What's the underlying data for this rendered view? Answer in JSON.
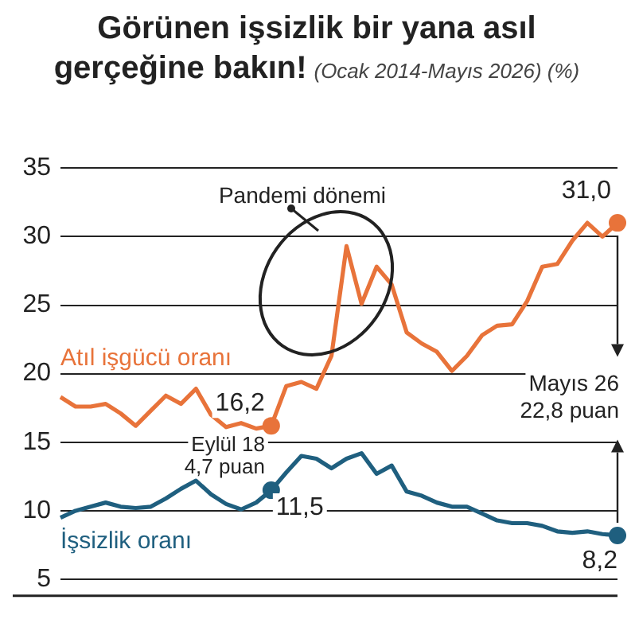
{
  "chart_data": {
    "type": "line",
    "title": "Görünen işsizlik bir yana asıl gerçeğine bakın!",
    "subtitle": "(Ocak 2014-Mayıs 2026) (%)",
    "categories": [
      null,
      null,
      null,
      null,
      null,
      null,
      null,
      null,
      null,
      null,
      null,
      null,
      null,
      null,
      null,
      null,
      null,
      null,
      null,
      null,
      null,
      null,
      null,
      null,
      null,
      null,
      null,
      null,
      null,
      null,
      null,
      null,
      null,
      null,
      null,
      null,
      null,
      null
    ],
    "ylim": [
      3.8,
      35
    ],
    "yticks": [
      5,
      10,
      15,
      20,
      25,
      30,
      35
    ],
    "grid": "y",
    "legend": false,
    "tick_labels": "y",
    "marker": "none",
    "line_style": "solid",
    "series": [
      {
        "name": "Atıl işgücü oranı",
        "color": "#e8733a",
        "values": [
          18.3,
          17.6,
          17.6,
          17.8,
          17.1,
          16.2,
          17.3,
          18.4,
          17.8,
          18.9,
          17.0,
          16.1,
          16.4,
          16.0,
          16.2,
          19.1,
          19.4,
          18.9,
          21.3,
          29.3,
          25.1,
          27.8,
          26.5,
          23.0,
          22.2,
          21.6,
          20.2,
          21.3,
          22.8,
          23.5,
          23.6,
          25.3,
          27.8,
          28.0,
          29.7,
          31.0,
          30.0,
          31.0
        ]
      },
      {
        "name": "İşsizlik oranı",
        "color": "#1f5f7f",
        "values": [
          9.5,
          10.0,
          10.3,
          10.6,
          10.3,
          10.2,
          10.3,
          10.9,
          11.6,
          12.2,
          11.2,
          10.5,
          10.1,
          10.6,
          11.5,
          12.8,
          14.0,
          13.8,
          13.1,
          13.8,
          14.2,
          12.7,
          13.3,
          11.4,
          11.1,
          10.6,
          10.3,
          10.3,
          9.8,
          9.3,
          9.1,
          9.1,
          8.9,
          8.5,
          8.4,
          8.5,
          8.3,
          8.2
        ]
      }
    ],
    "annotations": [
      "Pandemi dönemi",
      "Eylül 18\n4,7 puan",
      "Mayıs 26\n22,8 puan",
      {
        "text": "16,2",
        "y": 16.2
      },
      "11,5",
      {
        "text": "31,0",
        "y": 31.0
      },
      {
        "text": "8,2",
        "y": 8.2
      }
    ]
  }
}
